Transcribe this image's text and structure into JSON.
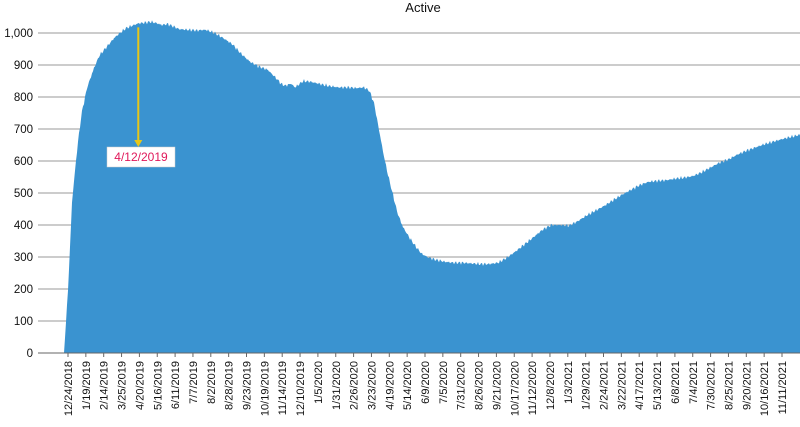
{
  "chart_data": {
    "type": "area",
    "title": "Active",
    "xlabel": "",
    "ylabel": "",
    "ylim": [
      0,
      1000
    ],
    "yticks": [
      "0",
      "100",
      "200",
      "300",
      "400",
      "500",
      "600",
      "700",
      "800",
      "900",
      "1,000"
    ],
    "xticks": [
      "12/24/2018",
      "1/19/2019",
      "2/14/2019",
      "3/25/2019",
      "4/20/2019",
      "5/16/2019",
      "6/11/2019",
      "7/7/2019",
      "8/2/2019",
      "8/28/2019",
      "9/23/2019",
      "10/19/2019",
      "11/14/2019",
      "12/10/2019",
      "1/5/2020",
      "1/31/2020",
      "2/26/2020",
      "3/23/2020",
      "4/19/2020",
      "5/14/2020",
      "6/9/2020",
      "7/5/2020",
      "7/31/2020",
      "8/26/2020",
      "9/21/2020",
      "10/17/2020",
      "11/12/2020",
      "12/8/2020",
      "1/3/2021",
      "1/29/2021",
      "2/24/2021",
      "3/22/2021",
      "4/17/2021",
      "5/13/2021",
      "6/8/2021",
      "7/4/2021",
      "7/30/2021",
      "8/25/2021",
      "9/20/2021",
      "10/16/2021",
      "11/11/2021"
    ],
    "grid": true,
    "legend": "none",
    "series_color": "#3a93d0",
    "points": [
      [
        "12/24/2018",
        0
      ],
      [
        "12/30/2018",
        200
      ],
      [
        "1/5/2019",
        480
      ],
      [
        "1/13/2019",
        650
      ],
      [
        "1/19/2019",
        750
      ],
      [
        "1/27/2019",
        830
      ],
      [
        "2/6/2019",
        890
      ],
      [
        "2/14/2019",
        930
      ],
      [
        "2/26/2019",
        960
      ],
      [
        "3/8/2019",
        985
      ],
      [
        "3/16/2019",
        1000
      ],
      [
        "3/25/2019",
        1015
      ],
      [
        "4/2/2019",
        1022
      ],
      [
        "4/12/2019",
        1030
      ],
      [
        "4/20/2019",
        1032
      ],
      [
        "5/1/2019",
        1035
      ],
      [
        "5/10/2019",
        1030
      ],
      [
        "5/16/2019",
        1025
      ],
      [
        "5/25/2019",
        1028
      ],
      [
        "6/3/2019",
        1020
      ],
      [
        "6/11/2019",
        1012
      ],
      [
        "6/25/2019",
        1010
      ],
      [
        "7/7/2019",
        1008
      ],
      [
        "7/20/2019",
        1010
      ],
      [
        "8/2/2019",
        1000
      ],
      [
        "8/14/2019",
        985
      ],
      [
        "8/28/2019",
        965
      ],
      [
        "9/10/2019",
        935
      ],
      [
        "9/23/2019",
        910
      ],
      [
        "10/6/2019",
        895
      ],
      [
        "10/19/2019",
        885
      ],
      [
        "10/26/2019",
        870
      ],
      [
        "11/2/2019",
        855
      ],
      [
        "11/8/2019",
        840
      ],
      [
        "11/14/2019",
        835
      ],
      [
        "11/22/2019",
        842
      ],
      [
        "11/28/2019",
        830
      ],
      [
        "12/4/2019",
        840
      ],
      [
        "12/10/2019",
        850
      ],
      [
        "12/20/2019",
        848
      ],
      [
        "1/5/2020",
        840
      ],
      [
        "1/15/2020",
        835
      ],
      [
        "1/31/2020",
        830
      ],
      [
        "2/13/2020",
        830
      ],
      [
        "2/26/2020",
        828
      ],
      [
        "3/8/2020",
        830
      ],
      [
        "3/16/2020",
        820
      ],
      [
        "3/23/2020",
        780
      ],
      [
        "3/30/2020",
        700
      ],
      [
        "4/6/2020",
        620
      ],
      [
        "4/12/2020",
        560
      ],
      [
        "4/19/2020",
        500
      ],
      [
        "4/26/2020",
        440
      ],
      [
        "5/4/2020",
        395
      ],
      [
        "5/14/2020",
        360
      ],
      [
        "5/24/2020",
        330
      ],
      [
        "6/1/2020",
        310
      ],
      [
        "6/9/2020",
        300
      ],
      [
        "6/20/2020",
        292
      ],
      [
        "7/5/2020",
        285
      ],
      [
        "7/18/2020",
        282
      ],
      [
        "7/31/2020",
        282
      ],
      [
        "8/13/2020",
        280
      ],
      [
        "8/26/2020",
        278
      ],
      [
        "9/8/2020",
        278
      ],
      [
        "9/21/2020",
        282
      ],
      [
        "10/4/2020",
        298
      ],
      [
        "10/17/2020",
        318
      ],
      [
        "10/30/2020",
        340
      ],
      [
        "11/12/2020",
        362
      ],
      [
        "11/25/2020",
        385
      ],
      [
        "12/8/2020",
        400
      ],
      [
        "12/20/2020",
        400
      ],
      [
        "1/3/2021",
        398
      ],
      [
        "1/16/2021",
        412
      ],
      [
        "1/29/2021",
        430
      ],
      [
        "2/11/2021",
        445
      ],
      [
        "2/24/2021",
        460
      ],
      [
        "3/9/2021",
        478
      ],
      [
        "3/22/2021",
        495
      ],
      [
        "4/4/2021",
        510
      ],
      [
        "4/17/2021",
        525
      ],
      [
        "4/30/2021",
        535
      ],
      [
        "5/13/2021",
        538
      ],
      [
        "5/26/2021",
        540
      ],
      [
        "6/8/2021",
        545
      ],
      [
        "6/21/2021",
        548
      ],
      [
        "7/4/2021",
        553
      ],
      [
        "7/17/2021",
        565
      ],
      [
        "7/30/2021",
        580
      ],
      [
        "8/12/2021",
        595
      ],
      [
        "8/25/2021",
        605
      ],
      [
        "9/7/2021",
        620
      ],
      [
        "9/20/2021",
        632
      ],
      [
        "10/3/2021",
        642
      ],
      [
        "10/16/2021",
        652
      ],
      [
        "10/29/2021",
        660
      ],
      [
        "11/11/2021",
        668
      ],
      [
        "11/24/2021",
        675
      ],
      [
        "12/8/2021",
        682
      ]
    ],
    "annotation": {
      "label": "4/12/2019",
      "date": "4/12/2019",
      "value": 1030,
      "arrow_color": "#e6c619",
      "text_color": "#e0185a"
    }
  }
}
